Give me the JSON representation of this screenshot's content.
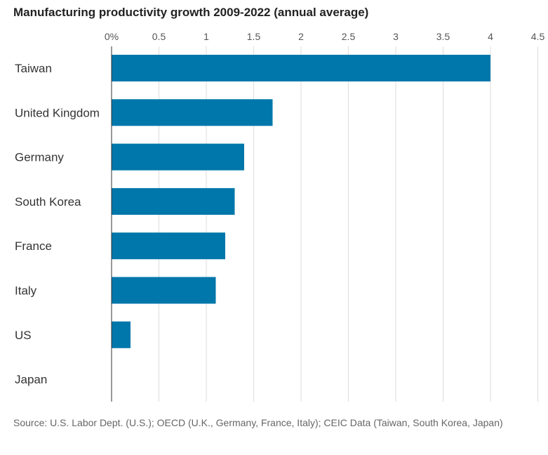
{
  "chart_data": {
    "type": "bar",
    "orientation": "horizontal",
    "title": "Manufacturing productivity growth 2009-2022 (annual average)",
    "categories": [
      "Taiwan",
      "United Kingdom",
      "Germany",
      "South Korea",
      "France",
      "Italy",
      "US",
      "Japan"
    ],
    "values": [
      4.0,
      1.7,
      1.4,
      1.3,
      1.2,
      1.1,
      0.2,
      0.0
    ],
    "x_ticks": [
      "0%",
      "0.5",
      "1",
      "1.5",
      "2",
      "2.5",
      "3",
      "3.5",
      "4",
      "4.5"
    ],
    "xlim": [
      0,
      4.5
    ],
    "grid": true,
    "bar_color": "#0077aa",
    "grid_color": "#dddddd",
    "source": "Source: U.S. Labor Dept. (U.S.); OECD (U.K., Germany, France, Italy); CEIC Data (Taiwan, South Korea, Japan)"
  }
}
